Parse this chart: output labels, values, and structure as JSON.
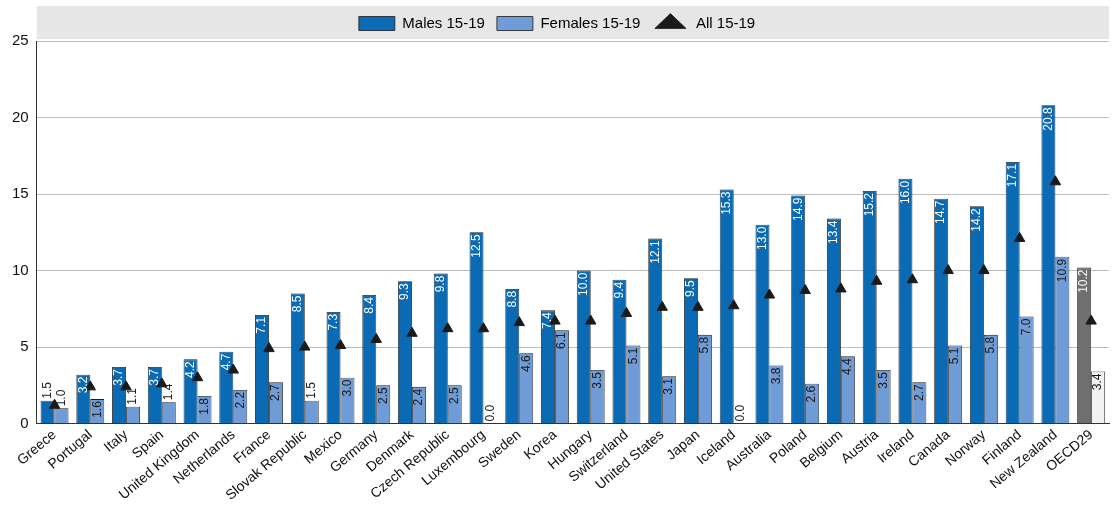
{
  "chart_data": {
    "type": "bar",
    "categories": [
      "Greece",
      "Portugal",
      "Italy",
      "Spain",
      "United Kingdom",
      "Netherlands",
      "France",
      "Slovak Republic",
      "Mexico",
      "Germany",
      "Denmark",
      "Czech Republic",
      "Luxembourg",
      "Sweden",
      "Korea",
      "Hungary",
      "Switzerland",
      "United States",
      "Japan",
      "Iceland",
      "Australia",
      "Poland",
      "Belgium",
      "Austria",
      "Ireland",
      "Canada",
      "Norway",
      "Finland",
      "New Zealand",
      "OECD29"
    ],
    "series": [
      {
        "name": "Males 15-19",
        "color": "#0a6ab4",
        "colors": [
          "#0a6ab4",
          "#0a6ab4",
          "#0a6ab4",
          "#0a6ab4",
          "#0a6ab4",
          "#0a6ab4",
          "#0a6ab4",
          "#0a6ab4",
          "#0a6ab4",
          "#0a6ab4",
          "#0a6ab4",
          "#0a6ab4",
          "#0a6ab4",
          "#0a6ab4",
          "#0a6ab4",
          "#0a6ab4",
          "#0a6ab4",
          "#0a6ab4",
          "#0a6ab4",
          "#0a6ab4",
          "#0a6ab4",
          "#0a6ab4",
          "#0a6ab4",
          "#0a6ab4",
          "#0a6ab4",
          "#0a6ab4",
          "#0a6ab4",
          "#0a6ab4",
          "#0a6ab4",
          "#6f6f6f"
        ],
        "values": [
          1.5,
          3.2,
          3.7,
          3.7,
          4.2,
          4.7,
          7.1,
          8.5,
          7.3,
          8.4,
          9.3,
          9.8,
          12.5,
          8.8,
          7.4,
          10.0,
          9.4,
          12.1,
          9.5,
          15.3,
          13.0,
          14.9,
          13.4,
          15.2,
          16.0,
          14.7,
          14.2,
          17.1,
          20.8,
          10.2
        ],
        "value_labels": [
          "1.5",
          "3.2",
          "3.7",
          "3.7",
          "4.2",
          "4.7",
          "7.1",
          "8.5",
          "7.3",
          "8.4",
          "9.3",
          "9.8",
          "12.5",
          "8.8",
          "7.4",
          "10.0",
          "9.4",
          "12.1",
          "9.5",
          "15.3",
          "13.0",
          "14.9",
          "13.4",
          "15.2",
          "16.0",
          "14.7",
          "14.2",
          "17.1",
          "20.8",
          "10.2"
        ]
      },
      {
        "name": "Females 15-19",
        "color": "#6f9bd6",
        "colors": [
          "#6f9bd6",
          "#6f9bd6",
          "#6f9bd6",
          "#6f9bd6",
          "#6f9bd6",
          "#6f9bd6",
          "#6f9bd6",
          "#6f9bd6",
          "#6f9bd6",
          "#6f9bd6",
          "#6f9bd6",
          "#6f9bd6",
          "#6f9bd6",
          "#6f9bd6",
          "#6f9bd6",
          "#6f9bd6",
          "#6f9bd6",
          "#6f9bd6",
          "#6f9bd6",
          "#6f9bd6",
          "#6f9bd6",
          "#6f9bd6",
          "#6f9bd6",
          "#6f9bd6",
          "#6f9bd6",
          "#6f9bd6",
          "#6f9bd6",
          "#6f9bd6",
          "#6f9bd6",
          "#f2f2f2"
        ],
        "values": [
          1.0,
          1.6,
          1.1,
          1.4,
          1.8,
          2.2,
          2.7,
          1.5,
          3.0,
          2.5,
          2.4,
          2.5,
          0.0,
          4.6,
          6.1,
          3.5,
          5.1,
          3.1,
          5.8,
          0.0,
          3.8,
          2.6,
          4.4,
          3.5,
          2.7,
          5.1,
          5.8,
          7.0,
          10.9,
          3.4
        ],
        "value_labels": [
          "1.0",
          "1.6",
          "1.1",
          "1.4",
          "1.8",
          "2.2",
          "2.7",
          "1.5",
          "3.0",
          "2.5",
          "2.4",
          "2.5",
          "0.0",
          "4.6",
          "6.1",
          "3.5",
          "5.1",
          "3.1",
          "5.8",
          "0.0",
          "3.8",
          "2.6",
          "4.4",
          "3.5",
          "2.7",
          "5.1",
          "5.8",
          "7.0",
          "10.9",
          "3.4"
        ]
      },
      {
        "name": "All 15-19",
        "type": "scatter",
        "marker": "triangle",
        "color": "#1a1a1a",
        "x": [
          "Greece",
          "Portugal",
          "Italy",
          "Spain",
          "United Kingdom",
          "Netherlands",
          "France",
          "Slovak Republic",
          "Mexico",
          "Germany",
          "Denmark",
          "Czech Republic",
          "Luxembourg",
          "Sweden",
          "Korea",
          "Hungary",
          "Switzerland",
          "United States",
          "Japan",
          "Iceland",
          "Australia",
          "Poland",
          "Belgium",
          "Austria",
          "Ireland",
          "Canada",
          "Norway",
          "Finland",
          "New Zealand",
          "OECD29"
        ],
        "values": [
          1.2,
          2.4,
          2.4,
          2.6,
          3.0,
          3.5,
          4.9,
          5.0,
          5.1,
          5.5,
          5.9,
          6.2,
          6.2,
          6.6,
          6.7,
          6.7,
          7.2,
          7.6,
          7.6,
          7.7,
          8.4,
          8.7,
          8.8,
          9.3,
          9.4,
          10.0,
          10.0,
          12.1,
          15.8,
          6.7
        ]
      }
    ],
    "ylim": [
      0,
      25
    ],
    "yticks": [
      0,
      5,
      10,
      15,
      20,
      25
    ],
    "grid": "y",
    "legend": "top"
  }
}
